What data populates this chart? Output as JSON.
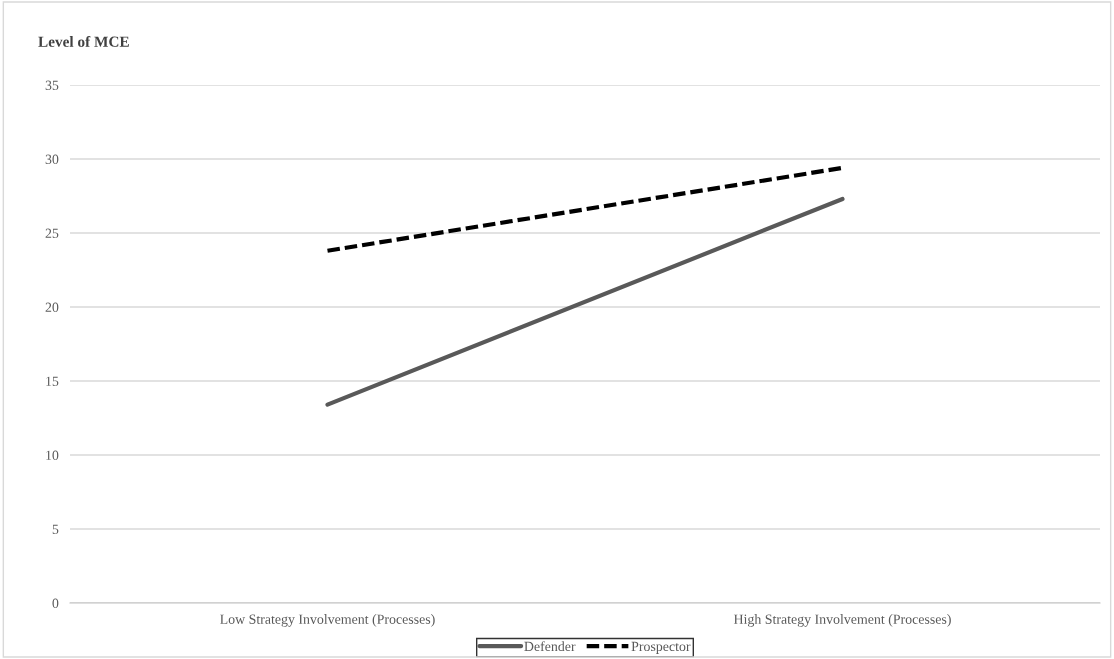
{
  "chart_data": {
    "type": "line",
    "ylabel": "Level of MCE",
    "categories": [
      "Low Strategy Involvement (Processes)",
      "High Strategy Involvement (Processes)"
    ],
    "series": [
      {
        "name": "Defender",
        "color": "#595959",
        "values": [
          13.4,
          27.3
        ],
        "line_style": "solid"
      },
      {
        "name": "Prospector",
        "color": "#000000",
        "values": [
          23.8,
          29.4
        ],
        "line_style": "dashed"
      }
    ],
    "ylim": [
      0,
      35
    ],
    "yticks": [
      0,
      5,
      10,
      15,
      20,
      25,
      30,
      35
    ],
    "grid": "y",
    "legend": "bottom",
    "marker": "none"
  }
}
